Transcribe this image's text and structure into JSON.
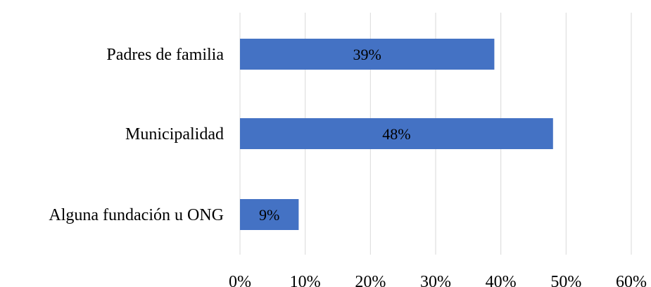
{
  "chart_data": {
    "type": "bar",
    "orientation": "horizontal",
    "categories": [
      "Padres de familia",
      "Municipalidad",
      "Alguna fundación u ONG"
    ],
    "values": [
      39,
      48,
      9
    ],
    "data_labels": [
      "39%",
      "48%",
      "9%"
    ],
    "xlim": [
      0,
      60
    ],
    "x_ticks": [
      0,
      10,
      20,
      30,
      40,
      50,
      60
    ],
    "x_tick_labels": [
      "0%",
      "10%",
      "20%",
      "30%",
      "40%",
      "50%",
      "60%"
    ],
    "grid": "vertical",
    "legend": "none",
    "title": "",
    "xlabel": "",
    "ylabel": "",
    "colors": {
      "bar": "#4472c4",
      "grid": "#d9d9d9"
    }
  }
}
